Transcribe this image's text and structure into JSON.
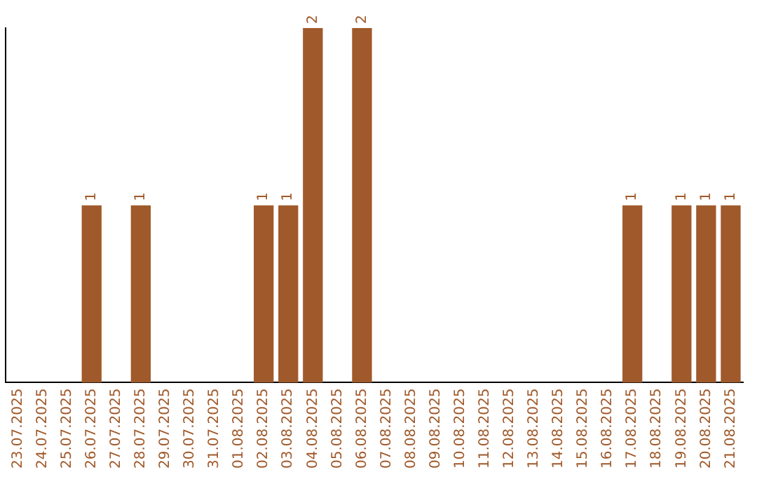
{
  "chart_data": {
    "type": "bar",
    "categories": [
      "23.07.2025",
      "24.07.2025",
      "25.07.2025",
      "26.07.2025",
      "27.07.2025",
      "28.07.2025",
      "29.07.2025",
      "30.07.2025",
      "31.07.2025",
      "01.08.2025",
      "02.08.2025",
      "03.08.2025",
      "04.08.2025",
      "05.08.2025",
      "06.08.2025",
      "07.08.2025",
      "08.08.2025",
      "09.08.2025",
      "10.08.2025",
      "11.08.2025",
      "12.08.2025",
      "13.08.2025",
      "14.08.2025",
      "15.08.2025",
      "16.08.2025",
      "17.08.2025",
      "18.08.2025",
      "19.08.2025",
      "20.08.2025",
      "21.08.2025"
    ],
    "values": [
      0,
      0,
      0,
      1,
      0,
      1,
      0,
      0,
      0,
      0,
      1,
      1,
      2,
      0,
      2,
      0,
      0,
      0,
      0,
      0,
      0,
      0,
      0,
      0,
      0,
      1,
      0,
      1,
      1,
      1
    ],
    "value_labels": [
      null,
      null,
      null,
      "1",
      null,
      "1",
      null,
      null,
      null,
      null,
      "1",
      "1",
      "2",
      null,
      "2",
      null,
      null,
      null,
      null,
      null,
      null,
      null,
      null,
      null,
      null,
      "1",
      null,
      "1",
      "1",
      "1"
    ],
    "color": "#a0592a",
    "ylim": [
      0,
      2
    ],
    "tick_labels": "x",
    "grid": false,
    "legend": false
  }
}
